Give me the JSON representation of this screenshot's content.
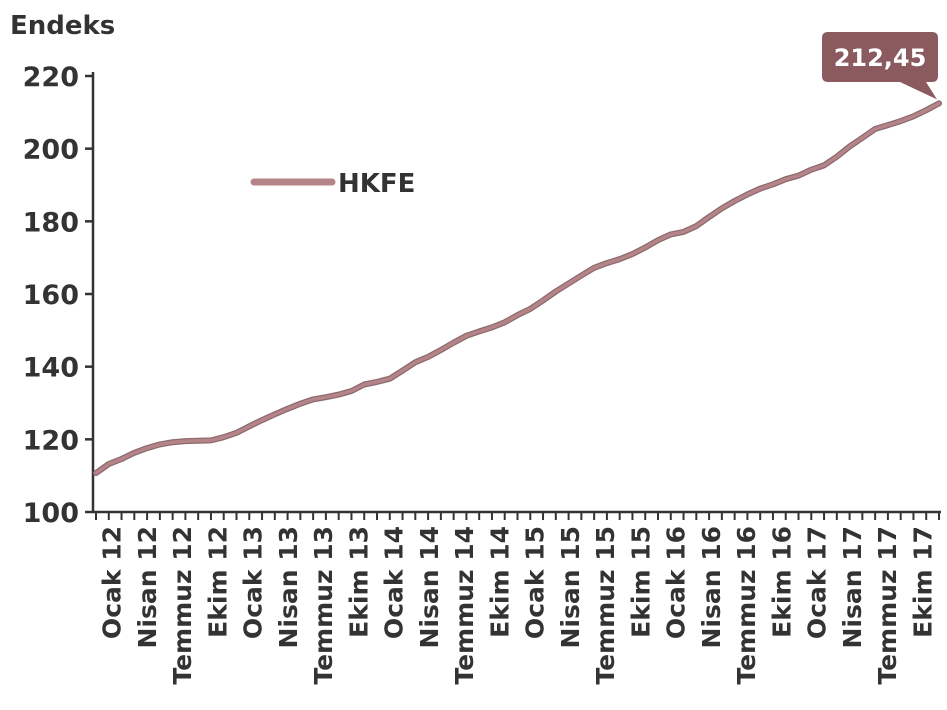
{
  "chart_data": {
    "type": "line",
    "ylabel": "Endeks",
    "ylim": [
      100,
      220
    ],
    "yticks": [
      100,
      120,
      140,
      160,
      180,
      200,
      220
    ],
    "x_labels": [
      "Ocak 12",
      "Nisan 12",
      "Temmuz 12",
      "Ekim 12",
      "Ocak 13",
      "Nisan 13",
      "Temmuz 13",
      "Ekim 13",
      "Ocak 14",
      "Nisan 14",
      "Temmuz 14",
      "Ekim 14",
      "Ocak 15",
      "Nisan 15",
      "Temmuz 15",
      "Ekim 15",
      "Ocak 16",
      "Nisan 16",
      "Temmuz 16",
      "Ekim 16",
      "Ocak 17",
      "Nisan 17",
      "Temmuz 17",
      "Ekim 17"
    ],
    "series": [
      {
        "name": "HKFE",
        "color": "#b58489",
        "values": [
          110.7,
          113.2,
          114.6,
          116.3,
          117.6,
          118.6,
          119.2,
          119.5,
          119.6,
          119.7,
          120.6,
          121.8,
          123.6,
          125.3,
          126.9,
          128.4,
          129.8,
          131.0,
          131.6,
          132.3,
          133.3,
          135.1,
          135.8,
          136.7,
          138.9,
          141.2,
          142.7,
          144.6,
          146.6,
          148.5,
          149.7,
          150.8,
          152.2,
          154.2,
          155.9,
          158.2,
          160.7,
          162.9,
          165.1,
          167.2,
          168.5,
          169.6,
          171.0,
          172.8,
          174.8,
          176.4,
          177.1,
          178.7,
          181.2,
          183.6,
          185.6,
          187.4,
          189.0,
          190.2,
          191.6,
          192.6,
          194.2,
          195.4,
          197.8,
          200.6,
          203.0,
          205.4,
          206.5,
          207.6,
          208.9,
          210.6,
          212.45
        ]
      }
    ],
    "legend": {
      "label": "HKFE",
      "placement": "top-left"
    },
    "annotation": {
      "label": "212,45",
      "value": 212.45,
      "color": "#8a5a5f"
    },
    "grid": false
  }
}
